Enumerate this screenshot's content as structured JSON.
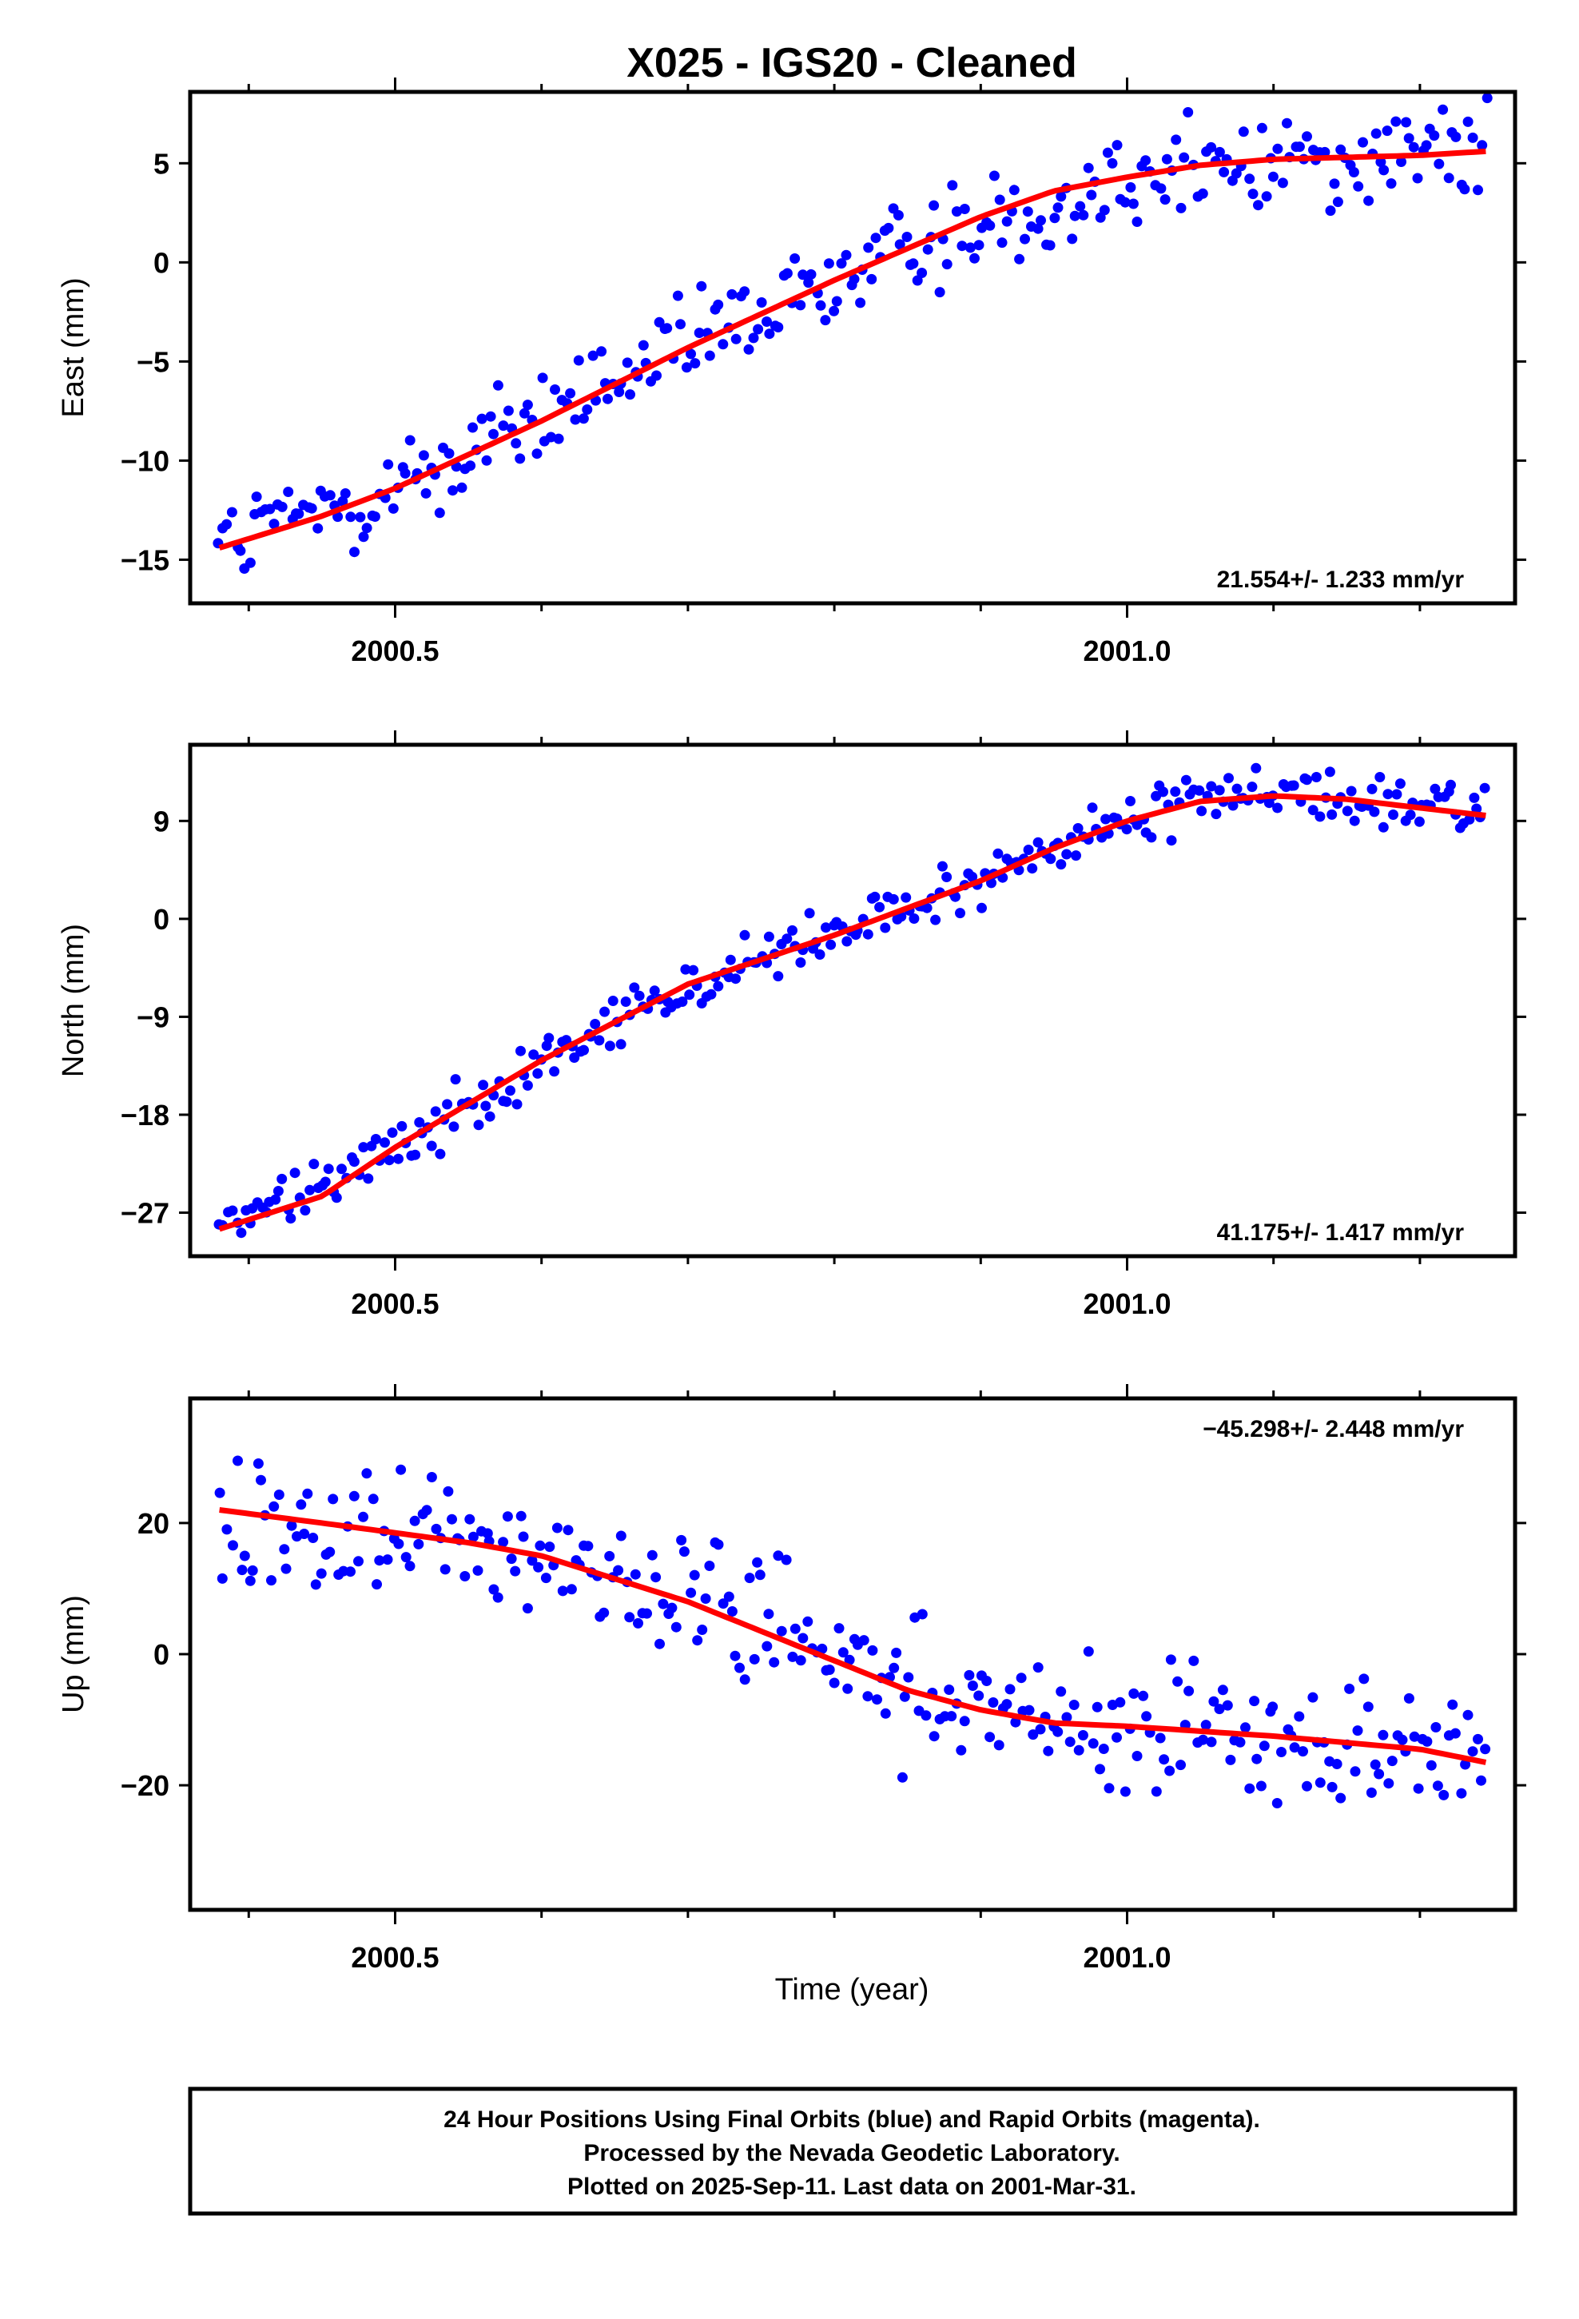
{
  "title": "X025  - IGS20 - Cleaned",
  "xlabel": "Time (year)",
  "x_tick_labels": [
    "2000.5",
    "2001.0"
  ],
  "colors": {
    "points": "#0000ff",
    "fit": "#ff0000",
    "frame": "#000000"
  },
  "caption": {
    "line1": "24 Hour Positions Using Final Orbits (blue) and Rapid Orbits (magenta).",
    "line2": "Processed by the Nevada Geodetic Laboratory.",
    "line3": "Plotted on 2025-Sep-11. Last data on 2001-Mar-31."
  },
  "chart_data": [
    {
      "type": "scatter",
      "ylabel": "East (mm)",
      "rate_label": "21.554+/- 1.233 mm/yr",
      "rate_position": "bottom-right",
      "xlim": [
        2000.36,
        2001.265
      ],
      "ylim": [
        -17.2,
        8.6
      ],
      "yticks": [
        5,
        0,
        -5,
        -10,
        -15
      ],
      "ytick_labels": [
        "5",
        "0",
        "−5",
        "−10",
        "−15"
      ],
      "xticks_major": [
        2000.5,
        2001.0
      ],
      "xticks_minor": [
        2000.4,
        2000.6,
        2000.7,
        2000.8,
        2000.9,
        2001.1,
        2001.2
      ],
      "series": [
        {
          "kind": "points",
          "x_range": [
            2000.38,
            2001.245
          ],
          "trend": [
            [
              2000.38,
              -14.4
            ],
            [
              2000.5,
              -11.4
            ],
            [
              2000.7,
              -4.3
            ],
            [
              2000.85,
              0.8
            ],
            [
              2001.0,
              4.3
            ],
            [
              2001.1,
              5.2
            ],
            [
              2001.245,
              5.6
            ]
          ],
          "scatter_sd": 1.3,
          "n": 300
        },
        {
          "kind": "fit",
          "points": [
            [
              2000.38,
              -14.4
            ],
            [
              2000.45,
              -12.8
            ],
            [
              2000.5,
              -11.4
            ],
            [
              2000.6,
              -8.0
            ],
            [
              2000.7,
              -4.3
            ],
            [
              2000.8,
              -0.9
            ],
            [
              2000.9,
              2.3
            ],
            [
              2000.95,
              3.6
            ],
            [
              2001.0,
              4.3
            ],
            [
              2001.05,
              4.9
            ],
            [
              2001.1,
              5.2
            ],
            [
              2001.15,
              5.3
            ],
            [
              2001.2,
              5.4
            ],
            [
              2001.245,
              5.6
            ]
          ]
        }
      ]
    },
    {
      "type": "scatter",
      "ylabel": "North (mm)",
      "rate_label": "41.175+/- 1.417 mm/yr",
      "rate_position": "bottom-right",
      "xlim": [
        2000.36,
        2001.265
      ],
      "ylim": [
        -31,
        16
      ],
      "yticks": [
        9,
        0,
        -9,
        -18,
        -27
      ],
      "ytick_labels": [
        "9",
        "0",
        "−9",
        "−18",
        "−27"
      ],
      "xticks_major": [
        2000.5,
        2001.0
      ],
      "xticks_minor": [
        2000.4,
        2000.6,
        2000.7,
        2000.8,
        2000.9,
        2001.1,
        2001.2
      ],
      "series": [
        {
          "kind": "points",
          "x_range": [
            2000.38,
            2001.245
          ],
          "trend": [
            [
              2000.38,
              -28.5
            ],
            [
              2000.5,
              -21.0
            ],
            [
              2000.6,
              -13.0
            ],
            [
              2000.7,
              -6.0
            ],
            [
              2000.8,
              -1.5
            ],
            [
              2000.9,
              3.5
            ],
            [
              2001.0,
              9.0
            ],
            [
              2001.07,
              11.3
            ],
            [
              2001.15,
              11.0
            ],
            [
              2001.245,
              9.5
            ]
          ],
          "scatter_sd": 1.2,
          "n": 300
        },
        {
          "kind": "fit",
          "points": [
            [
              2000.38,
              -28.5
            ],
            [
              2000.45,
              -25.5
            ],
            [
              2000.5,
              -21.0
            ],
            [
              2000.55,
              -17.0
            ],
            [
              2000.6,
              -13.0
            ],
            [
              2000.65,
              -9.5
            ],
            [
              2000.7,
              -6.0
            ],
            [
              2000.8,
              -1.5
            ],
            [
              2000.9,
              3.5
            ],
            [
              2000.95,
              6.5
            ],
            [
              2001.0,
              9.0
            ],
            [
              2001.05,
              10.8
            ],
            [
              2001.1,
              11.3
            ],
            [
              2001.15,
              11.0
            ],
            [
              2001.2,
              10.2
            ],
            [
              2001.245,
              9.5
            ]
          ]
        }
      ]
    },
    {
      "type": "scatter",
      "ylabel": "Up (mm)",
      "rate_label": "−45.298+/- 2.448 mm/yr",
      "rate_position": "top-right",
      "xlim": [
        2000.36,
        2001.265
      ],
      "ylim": [
        -39,
        39
      ],
      "yticks": [
        20,
        0,
        -20
      ],
      "ytick_labels": [
        "20",
        "0",
        "−20"
      ],
      "xticks_major": [
        2000.5,
        2001.0
      ],
      "xticks_minor": [
        2000.4,
        2000.6,
        2000.7,
        2000.8,
        2000.9,
        2001.1,
        2001.2
      ],
      "series": [
        {
          "kind": "points",
          "x_range": [
            2000.38,
            2001.245
          ],
          "trend": [
            [
              2000.38,
              22.0
            ],
            [
              2000.5,
              18.5
            ],
            [
              2000.6,
              15.0
            ],
            [
              2000.7,
              8.0
            ],
            [
              2000.8,
              -1.0
            ],
            [
              2000.9,
              -8.5
            ],
            [
              2001.0,
              -11.0
            ],
            [
              2001.1,
              -12.5
            ],
            [
              2001.2,
              -14.5
            ],
            [
              2001.245,
              -16.5
            ]
          ],
          "scatter_sd": 5.0,
          "n": 300
        },
        {
          "kind": "fit",
          "points": [
            [
              2000.38,
              22.0
            ],
            [
              2000.45,
              20.0
            ],
            [
              2000.5,
              18.5
            ],
            [
              2000.55,
              17.0
            ],
            [
              2000.6,
              15.0
            ],
            [
              2000.65,
              11.5
            ],
            [
              2000.7,
              8.0
            ],
            [
              2000.75,
              3.5
            ],
            [
              2000.8,
              -1.0
            ],
            [
              2000.85,
              -5.5
            ],
            [
              2000.9,
              -8.5
            ],
            [
              2000.95,
              -10.5
            ],
            [
              2001.0,
              -11.0
            ],
            [
              2001.1,
              -12.5
            ],
            [
              2001.2,
              -14.5
            ],
            [
              2001.245,
              -16.5
            ]
          ]
        }
      ]
    }
  ]
}
